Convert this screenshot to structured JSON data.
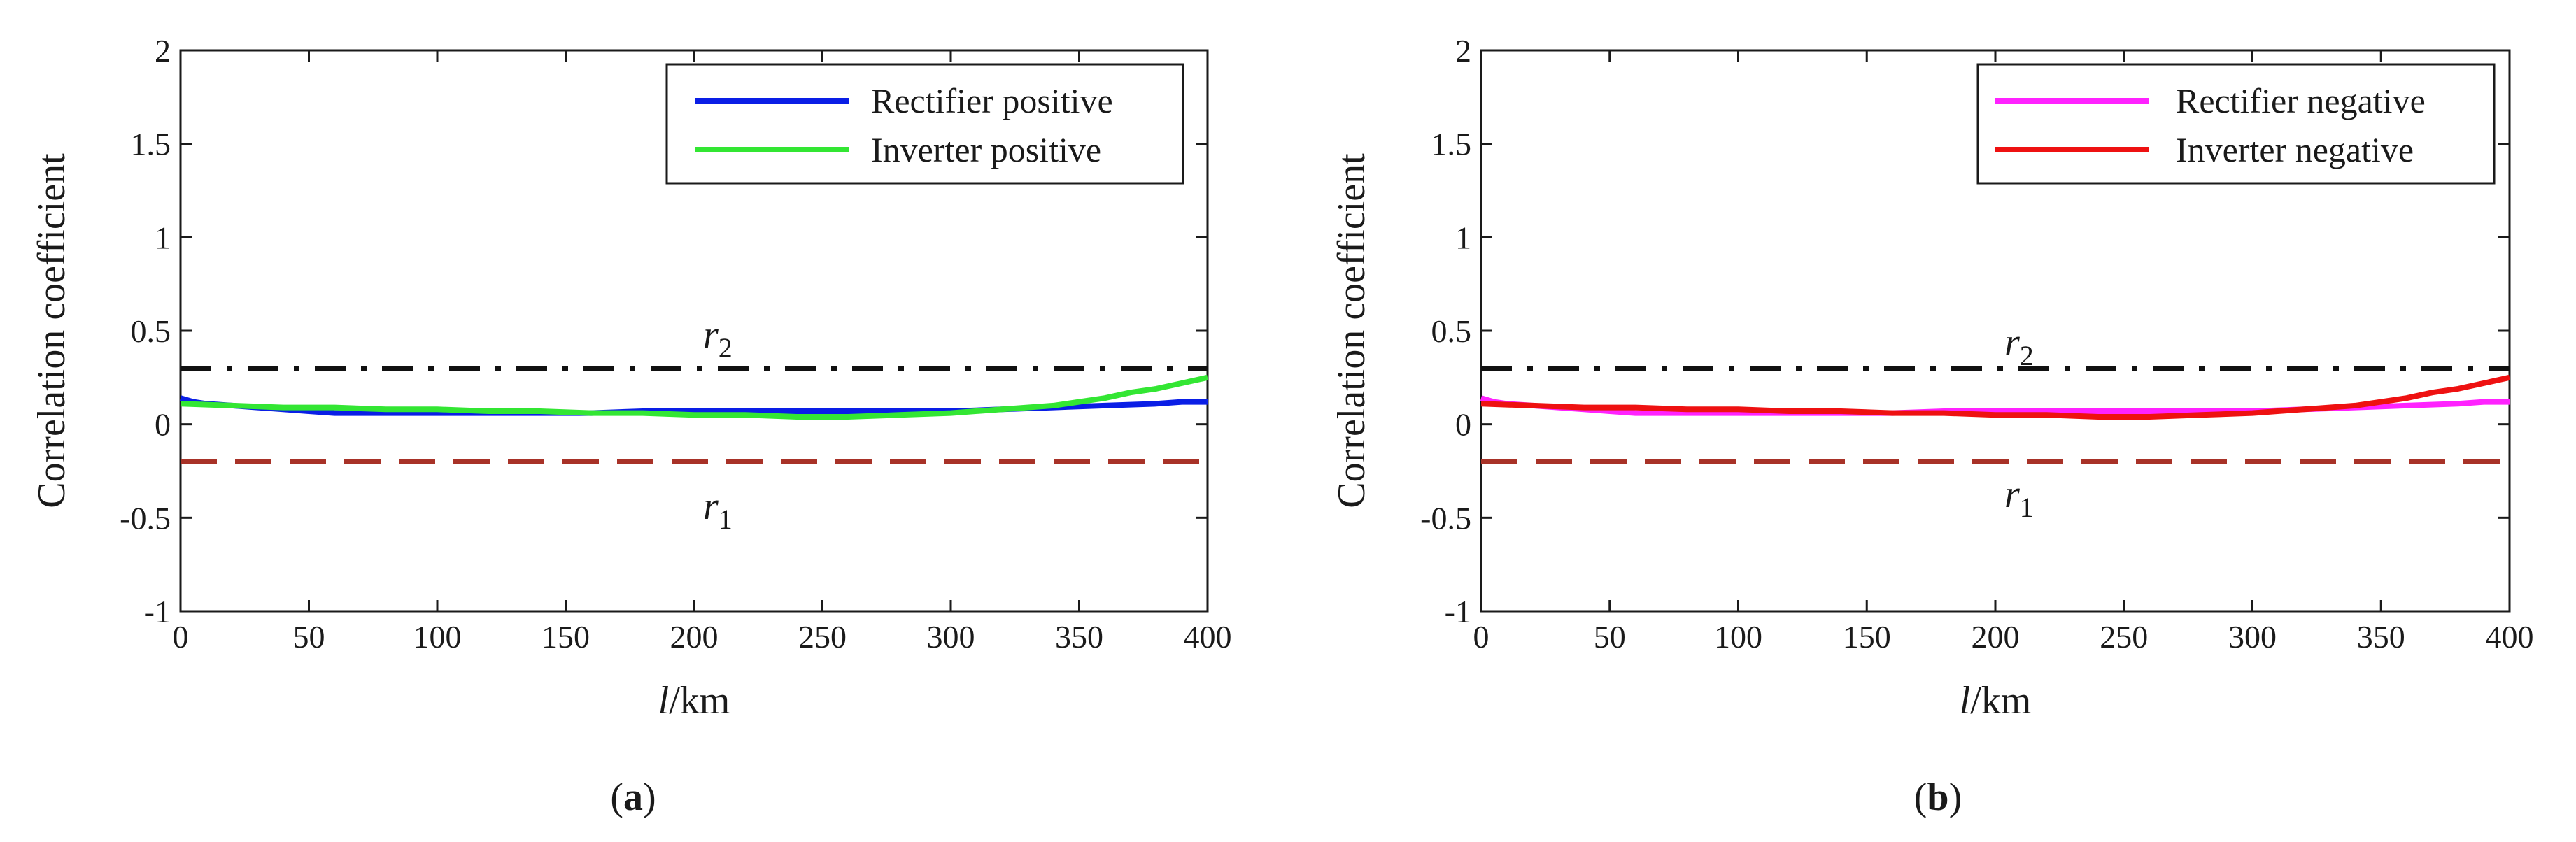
{
  "chart_data": [
    {
      "type": "line",
      "panel_label": "a",
      "xlabel_italic": "l",
      "xlabel_rest": "/km",
      "ylabel": "Correlation coefficient",
      "xlim": [
        0,
        400
      ],
      "ylim": [
        -1,
        2
      ],
      "xticks": [
        "0",
        "50",
        "100",
        "150",
        "200",
        "250",
        "300",
        "350",
        "400"
      ],
      "yticks": [
        "-1",
        "-0.5",
        "0",
        "0.5",
        "1",
        "1.5",
        "2"
      ],
      "xtick_values": [
        0,
        50,
        100,
        150,
        200,
        250,
        300,
        350,
        400
      ],
      "ytick_values": [
        -1,
        -0.5,
        0,
        0.5,
        1,
        1.5,
        2
      ],
      "legend_position": "top-right",
      "series": [
        {
          "name": "Rectifier positive",
          "color": "#0a1ee6",
          "x": [
            0,
            5,
            10,
            20,
            30,
            40,
            50,
            60,
            80,
            100,
            120,
            140,
            160,
            180,
            200,
            220,
            240,
            260,
            280,
            300,
            320,
            340,
            360,
            380,
            390,
            400
          ],
          "y": [
            0.14,
            0.12,
            0.11,
            0.1,
            0.09,
            0.08,
            0.07,
            0.06,
            0.06,
            0.06,
            0.06,
            0.06,
            0.06,
            0.07,
            0.07,
            0.07,
            0.07,
            0.07,
            0.07,
            0.07,
            0.08,
            0.09,
            0.1,
            0.11,
            0.12,
            0.12
          ]
        },
        {
          "name": "Inverter positive",
          "color": "#33e633",
          "x": [
            0,
            20,
            40,
            60,
            80,
            100,
            120,
            140,
            160,
            180,
            200,
            220,
            240,
            260,
            280,
            300,
            320,
            340,
            350,
            360,
            370,
            380,
            390,
            400
          ],
          "y": [
            0.11,
            0.1,
            0.09,
            0.09,
            0.08,
            0.08,
            0.07,
            0.07,
            0.06,
            0.06,
            0.05,
            0.05,
            0.04,
            0.04,
            0.05,
            0.06,
            0.08,
            0.1,
            0.12,
            0.14,
            0.17,
            0.19,
            0.22,
            0.25
          ]
        }
      ],
      "reference_lines": [
        {
          "name": "r2",
          "value": 0.3,
          "style": "dash-dot",
          "color": "#111111",
          "label_symbol": "r",
          "label_sub": "2"
        },
        {
          "name": "r1",
          "value": -0.2,
          "style": "dashed",
          "color": "#a83228",
          "label_symbol": "r",
          "label_sub": "1"
        }
      ]
    },
    {
      "type": "line",
      "panel_label": "b",
      "xlabel_italic": "l",
      "xlabel_rest": "/km",
      "ylabel": "Correlation coefficient",
      "xlim": [
        0,
        400
      ],
      "ylim": [
        -1,
        2
      ],
      "xticks": [
        "0",
        "50",
        "100",
        "150",
        "200",
        "250",
        "300",
        "350",
        "400"
      ],
      "yticks": [
        "-1",
        "-0.5",
        "0",
        "0.5",
        "1",
        "1.5",
        "2"
      ],
      "xtick_values": [
        0,
        50,
        100,
        150,
        200,
        250,
        300,
        350,
        400
      ],
      "ytick_values": [
        -1,
        -0.5,
        0,
        0.5,
        1,
        1.5,
        2
      ],
      "legend_position": "top-right",
      "series": [
        {
          "name": "Rectifier negative",
          "color": "#ff22ff",
          "x": [
            0,
            5,
            10,
            20,
            30,
            40,
            50,
            60,
            80,
            100,
            120,
            140,
            160,
            180,
            200,
            220,
            240,
            260,
            280,
            300,
            320,
            340,
            360,
            380,
            390,
            400
          ],
          "y": [
            0.14,
            0.12,
            0.11,
            0.1,
            0.09,
            0.08,
            0.07,
            0.06,
            0.06,
            0.06,
            0.06,
            0.06,
            0.06,
            0.07,
            0.07,
            0.07,
            0.07,
            0.07,
            0.07,
            0.07,
            0.08,
            0.09,
            0.1,
            0.11,
            0.12,
            0.12
          ]
        },
        {
          "name": "Inverter negative",
          "color": "#ee1111",
          "x": [
            0,
            20,
            40,
            60,
            80,
            100,
            120,
            140,
            160,
            180,
            200,
            220,
            240,
            260,
            280,
            300,
            320,
            340,
            350,
            360,
            370,
            380,
            390,
            400
          ],
          "y": [
            0.11,
            0.1,
            0.09,
            0.09,
            0.08,
            0.08,
            0.07,
            0.07,
            0.06,
            0.06,
            0.05,
            0.05,
            0.04,
            0.04,
            0.05,
            0.06,
            0.08,
            0.1,
            0.12,
            0.14,
            0.17,
            0.19,
            0.22,
            0.25
          ]
        }
      ],
      "reference_lines": [
        {
          "name": "r2",
          "value": 0.3,
          "style": "dash-dot",
          "color": "#111111",
          "label_symbol": "r",
          "label_sub": "2"
        },
        {
          "name": "r1",
          "value": -0.2,
          "style": "dashed",
          "color": "#a83228",
          "label_symbol": "r",
          "label_sub": "1"
        }
      ]
    }
  ]
}
